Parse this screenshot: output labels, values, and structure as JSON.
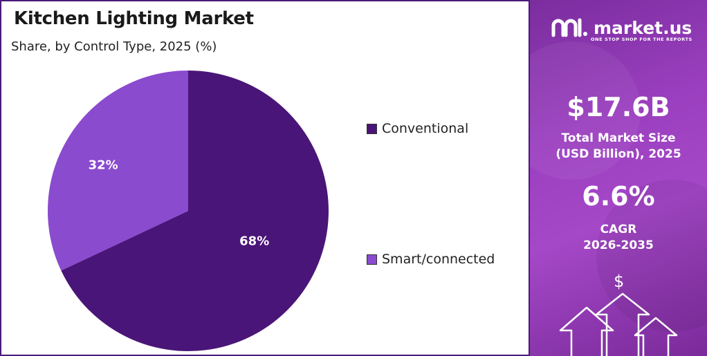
{
  "chart_data": {
    "type": "pie",
    "title": "Kitchen Lighting Market",
    "subtitle": "Share, by Control Type, 2025 (%)",
    "categories": [
      "Conventional",
      "Smart/connected"
    ],
    "values": [
      68,
      32
    ],
    "labels": [
      "68%",
      "32%"
    ],
    "colors": [
      "#4a1578",
      "#8a4bcf"
    ],
    "legend": "right"
  },
  "sidebar": {
    "brand": "market.us",
    "tagline": "ONE STOP SHOP FOR THE REPORTS",
    "market_size_value": "$17.6B",
    "market_size_label_1": "Total Market Size",
    "market_size_label_2": "(USD Billion), 2025",
    "cagr_value": "6.6%",
    "cagr_label_1": "CAGR",
    "cagr_label_2": "2026-2035",
    "dollar_symbol": "$",
    "logo_icon": "market-us-logo-icon",
    "arrow_icon": "up-arrow-icon"
  }
}
